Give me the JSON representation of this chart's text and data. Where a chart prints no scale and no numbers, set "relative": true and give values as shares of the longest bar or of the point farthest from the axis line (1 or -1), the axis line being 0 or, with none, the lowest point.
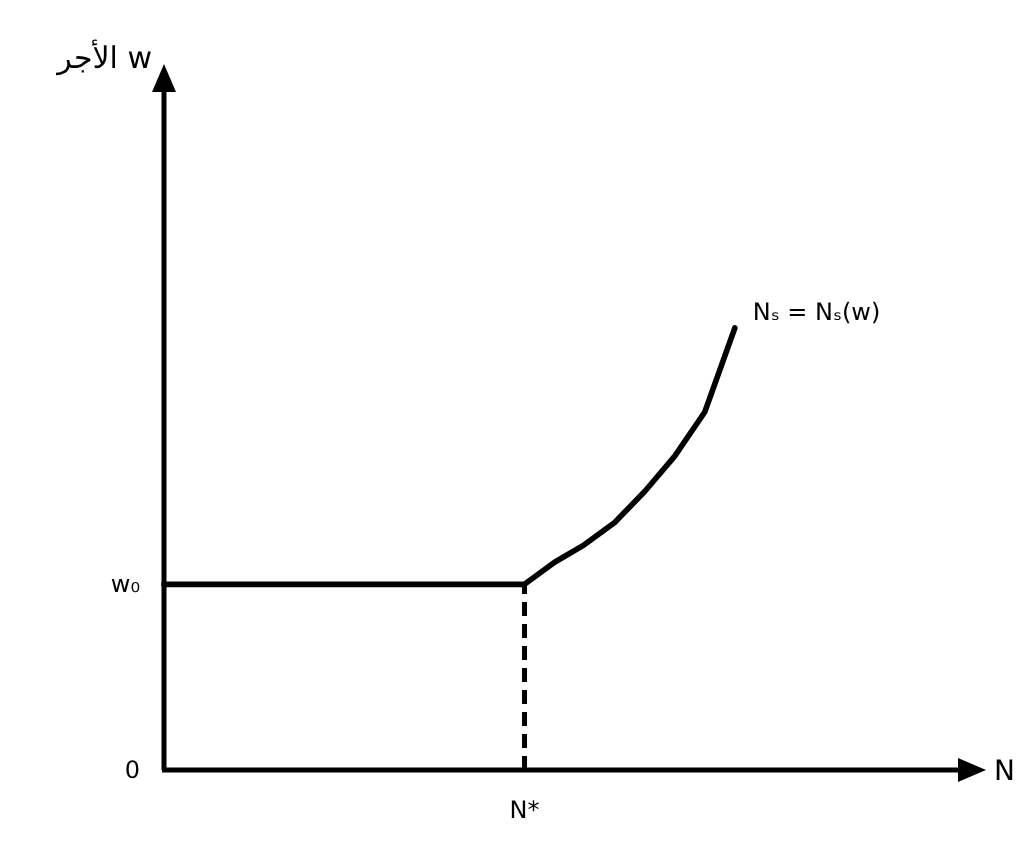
{
  "chart_data": {
    "type": "line",
    "relative": true,
    "categories": [
      null,
      null,
      null,
      null,
      null,
      null,
      null,
      null,
      null,
      null,
      null,
      null,
      null,
      null,
      null,
      null,
      null,
      null,
      null,
      null
    ],
    "series": [
      {
        "name": "Nₛ = Nₛ(w)",
        "color": "#000000",
        "values": [
          0.42,
          0.42,
          0.42,
          0.42,
          0.42,
          0.42,
          0.42,
          0.42,
          0.42,
          0.42,
          0.42,
          0.42,
          0.42,
          0.47,
          0.51,
          0.56,
          0.63,
          0.71,
          0.81,
          1
        ]
      }
    ],
    "line_style": "solid",
    "annotations": [
      "الأجر w",
      "w₀",
      "0",
      "N*",
      "N"
    ]
  }
}
